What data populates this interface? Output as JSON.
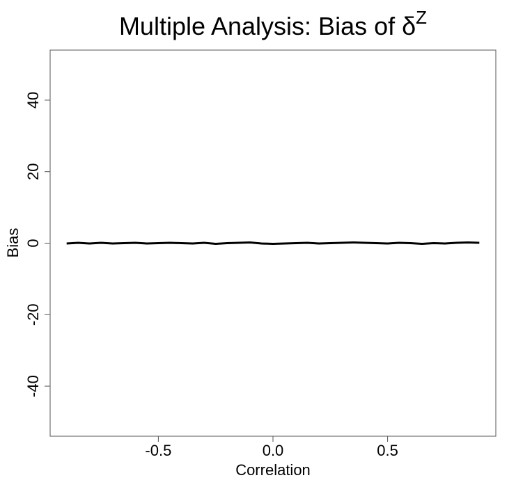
{
  "chart_data": {
    "type": "line",
    "title": "Multiple Analysis: Bias of δ",
    "title_superscript": "Z",
    "x_label": "Correlation",
    "y_label": "Bias",
    "x": [
      -0.9,
      -0.85,
      -0.8,
      -0.75,
      -0.7,
      -0.65,
      -0.6,
      -0.55,
      -0.5,
      -0.45,
      -0.4,
      -0.35,
      -0.3,
      -0.25,
      -0.2,
      -0.15,
      -0.1,
      -0.05,
      0.0,
      0.05,
      0.1,
      0.15,
      0.2,
      0.25,
      0.3,
      0.35,
      0.4,
      0.45,
      0.5,
      0.55,
      0.6,
      0.65,
      0.7,
      0.75,
      0.8,
      0.85,
      0.9
    ],
    "series": [
      {
        "name": "Bias",
        "color": "#000000",
        "values": [
          -0.1,
          0.1,
          -0.1,
          0.1,
          -0.1,
          0.0,
          0.1,
          -0.1,
          0.0,
          0.1,
          0.0,
          -0.1,
          0.1,
          -0.2,
          0.0,
          0.1,
          0.2,
          -0.1,
          -0.2,
          -0.1,
          0.0,
          0.1,
          -0.1,
          0.0,
          0.1,
          0.2,
          0.1,
          0.0,
          -0.1,
          0.1,
          0.0,
          -0.2,
          0.0,
          -0.1,
          0.1,
          0.2,
          0.1
        ]
      }
    ],
    "xlim": [
      -0.972,
      0.972
    ],
    "ylim": [
      -54,
      54
    ],
    "xticks": [
      {
        "value": -0.5,
        "label": "-0.5"
      },
      {
        "value": 0.0,
        "label": "0.0"
      },
      {
        "value": 0.5,
        "label": "0.5"
      }
    ],
    "yticks": [
      -40,
      -20,
      0,
      20,
      40
    ]
  }
}
